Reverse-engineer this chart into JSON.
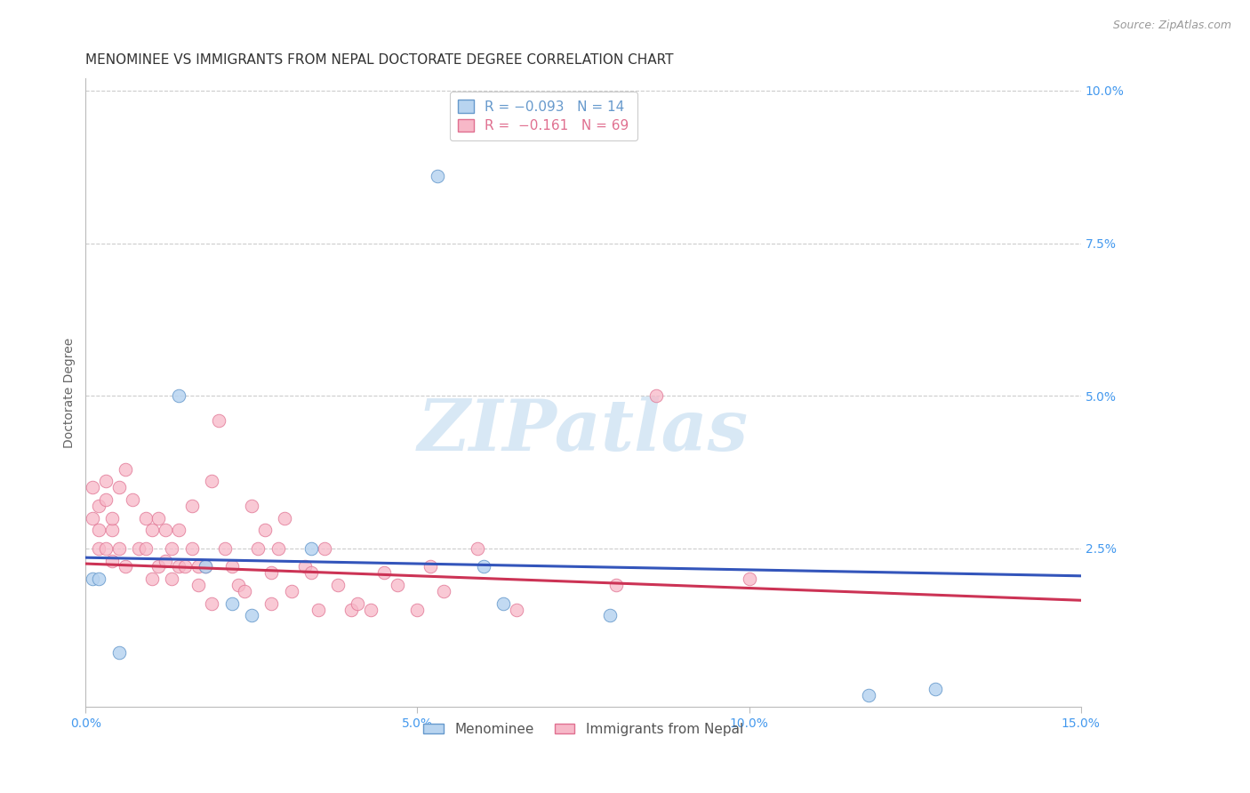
{
  "title": "MENOMINEE VS IMMIGRANTS FROM NEPAL DOCTORATE DEGREE CORRELATION CHART",
  "source": "Source: ZipAtlas.com",
  "ylabel": "Doctorate Degree",
  "xlim": [
    0.0,
    0.15
  ],
  "ylim": [
    -0.001,
    0.102
  ],
  "xticks": [
    0.0,
    0.05,
    0.1,
    0.15
  ],
  "xtick_labels": [
    "0.0%",
    "5.0%",
    "10.0%",
    "15.0%"
  ],
  "yticks_right": [
    0.025,
    0.05,
    0.075,
    0.1
  ],
  "ytick_labels_right": [
    "2.5%",
    "5.0%",
    "7.5%",
    "10.0%"
  ],
  "background_color": "#ffffff",
  "grid_color": "#cccccc",
  "menominee_color": "#b8d4f0",
  "nepal_color": "#f7b8c8",
  "menominee_edge_color": "#6699cc",
  "nepal_edge_color": "#e07090",
  "line_blue": "#3355bb",
  "line_pink": "#cc3355",
  "legend_label_menominee": "Menominee",
  "legend_label_nepal": "Immigrants from Nepal",
  "watermark_text": "ZIPatlas",
  "menominee_x": [
    0.001,
    0.005,
    0.014,
    0.018,
    0.022,
    0.025,
    0.034,
    0.053,
    0.06,
    0.063,
    0.079,
    0.118,
    0.128,
    0.002
  ],
  "menominee_y": [
    0.02,
    0.008,
    0.05,
    0.022,
    0.016,
    0.014,
    0.025,
    0.086,
    0.022,
    0.016,
    0.014,
    0.001,
    0.002,
    0.02
  ],
  "nepal_x": [
    0.001,
    0.001,
    0.002,
    0.002,
    0.002,
    0.003,
    0.003,
    0.003,
    0.004,
    0.004,
    0.004,
    0.005,
    0.005,
    0.006,
    0.006,
    0.007,
    0.008,
    0.009,
    0.009,
    0.01,
    0.01,
    0.011,
    0.011,
    0.012,
    0.012,
    0.013,
    0.013,
    0.014,
    0.014,
    0.015,
    0.016,
    0.016,
    0.017,
    0.017,
    0.018,
    0.019,
    0.019,
    0.02,
    0.021,
    0.022,
    0.023,
    0.024,
    0.025,
    0.026,
    0.027,
    0.028,
    0.028,
    0.029,
    0.03,
    0.031,
    0.033,
    0.034,
    0.035,
    0.036,
    0.038,
    0.04,
    0.041,
    0.043,
    0.045,
    0.047,
    0.05,
    0.052,
    0.054,
    0.059,
    0.065,
    0.08,
    0.086,
    0.1
  ],
  "nepal_y": [
    0.03,
    0.035,
    0.028,
    0.032,
    0.025,
    0.033,
    0.036,
    0.025,
    0.023,
    0.028,
    0.03,
    0.025,
    0.035,
    0.038,
    0.022,
    0.033,
    0.025,
    0.03,
    0.025,
    0.02,
    0.028,
    0.03,
    0.022,
    0.023,
    0.028,
    0.02,
    0.025,
    0.028,
    0.022,
    0.022,
    0.025,
    0.032,
    0.019,
    0.022,
    0.022,
    0.036,
    0.016,
    0.046,
    0.025,
    0.022,
    0.019,
    0.018,
    0.032,
    0.025,
    0.028,
    0.016,
    0.021,
    0.025,
    0.03,
    0.018,
    0.022,
    0.021,
    0.015,
    0.025,
    0.019,
    0.015,
    0.016,
    0.015,
    0.021,
    0.019,
    0.015,
    0.022,
    0.018,
    0.025,
    0.015,
    0.019,
    0.05,
    0.02
  ],
  "marker_size": 110,
  "title_fontsize": 11,
  "axis_label_fontsize": 10,
  "tick_fontsize": 10,
  "legend_fontsize": 11
}
